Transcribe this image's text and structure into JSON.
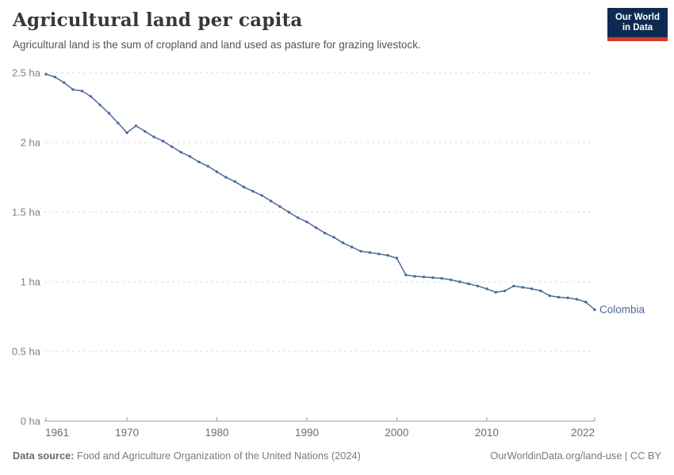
{
  "header": {
    "title": "Agricultural land per capita",
    "subtitle": "Agricultural land is the sum of cropland and land used as pasture for grazing livestock."
  },
  "logo": {
    "line1": "Our World",
    "line2": "in Data",
    "bg_color": "#0d2b52",
    "stripe_color": "#d53927"
  },
  "footer": {
    "source_label": "Data source:",
    "source_text": " Food and Agriculture Organization of the United Nations (2024)",
    "credit": "OurWorldinData.org/land-use | CC BY"
  },
  "colors": {
    "line": "#4c6a9c",
    "gridline": "#dddddd",
    "axis": "#999999",
    "tick_label": "#6e6e6e",
    "ytick_label": "#818181"
  },
  "chart_data": {
    "type": "line",
    "title": "Agricultural land per capita",
    "unit": "ha",
    "xlim": [
      1961,
      2022
    ],
    "ylim": [
      0,
      2.5
    ],
    "grid": "dashed-horizontal",
    "legend_position": "end-of-line-label",
    "yticks": [
      {
        "value": 0,
        "label": "0 ha"
      },
      {
        "value": 0.5,
        "label": "0.5 ha"
      },
      {
        "value": 1,
        "label": "1 ha"
      },
      {
        "value": 1.5,
        "label": "1.5 ha"
      },
      {
        "value": 2,
        "label": "2 ha"
      },
      {
        "value": 2.5,
        "label": "2.5 ha"
      }
    ],
    "xticks": [
      {
        "value": 1961,
        "label": "1961",
        "align": "start"
      },
      {
        "value": 1970,
        "label": "1970",
        "align": "middle"
      },
      {
        "value": 1980,
        "label": "1980",
        "align": "middle"
      },
      {
        "value": 1990,
        "label": "1990",
        "align": "middle"
      },
      {
        "value": 2000,
        "label": "2000",
        "align": "middle"
      },
      {
        "value": 2010,
        "label": "2010",
        "align": "middle"
      },
      {
        "value": 2022,
        "label": "2022",
        "align": "end"
      }
    ],
    "series": [
      {
        "name": "Colombia",
        "x": [
          1961,
          1962,
          1963,
          1964,
          1965,
          1966,
          1967,
          1968,
          1969,
          1970,
          1971,
          1972,
          1973,
          1974,
          1975,
          1976,
          1977,
          1978,
          1979,
          1980,
          1981,
          1982,
          1983,
          1984,
          1985,
          1986,
          1987,
          1988,
          1989,
          1990,
          1991,
          1992,
          1993,
          1994,
          1995,
          1996,
          1997,
          1998,
          1999,
          2000,
          2001,
          2002,
          2003,
          2004,
          2005,
          2006,
          2007,
          2008,
          2009,
          2010,
          2011,
          2012,
          2013,
          2014,
          2015,
          2016,
          2017,
          2018,
          2019,
          2020,
          2021,
          2022
        ],
        "values": [
          2.49,
          2.47,
          2.43,
          2.38,
          2.37,
          2.33,
          2.27,
          2.21,
          2.14,
          2.07,
          2.12,
          2.08,
          2.04,
          2.01,
          1.97,
          1.93,
          1.9,
          1.86,
          1.83,
          1.79,
          1.75,
          1.72,
          1.68,
          1.65,
          1.62,
          1.58,
          1.54,
          1.5,
          1.46,
          1.43,
          1.39,
          1.35,
          1.32,
          1.28,
          1.25,
          1.22,
          1.21,
          1.2,
          1.19,
          1.17,
          1.05,
          1.04,
          1.035,
          1.03,
          1.025,
          1.015,
          1.0,
          0.985,
          0.97,
          0.95,
          0.925,
          0.935,
          0.97,
          0.96,
          0.95,
          0.935,
          0.9,
          0.89,
          0.885,
          0.875,
          0.855,
          0.8
        ]
      }
    ]
  }
}
